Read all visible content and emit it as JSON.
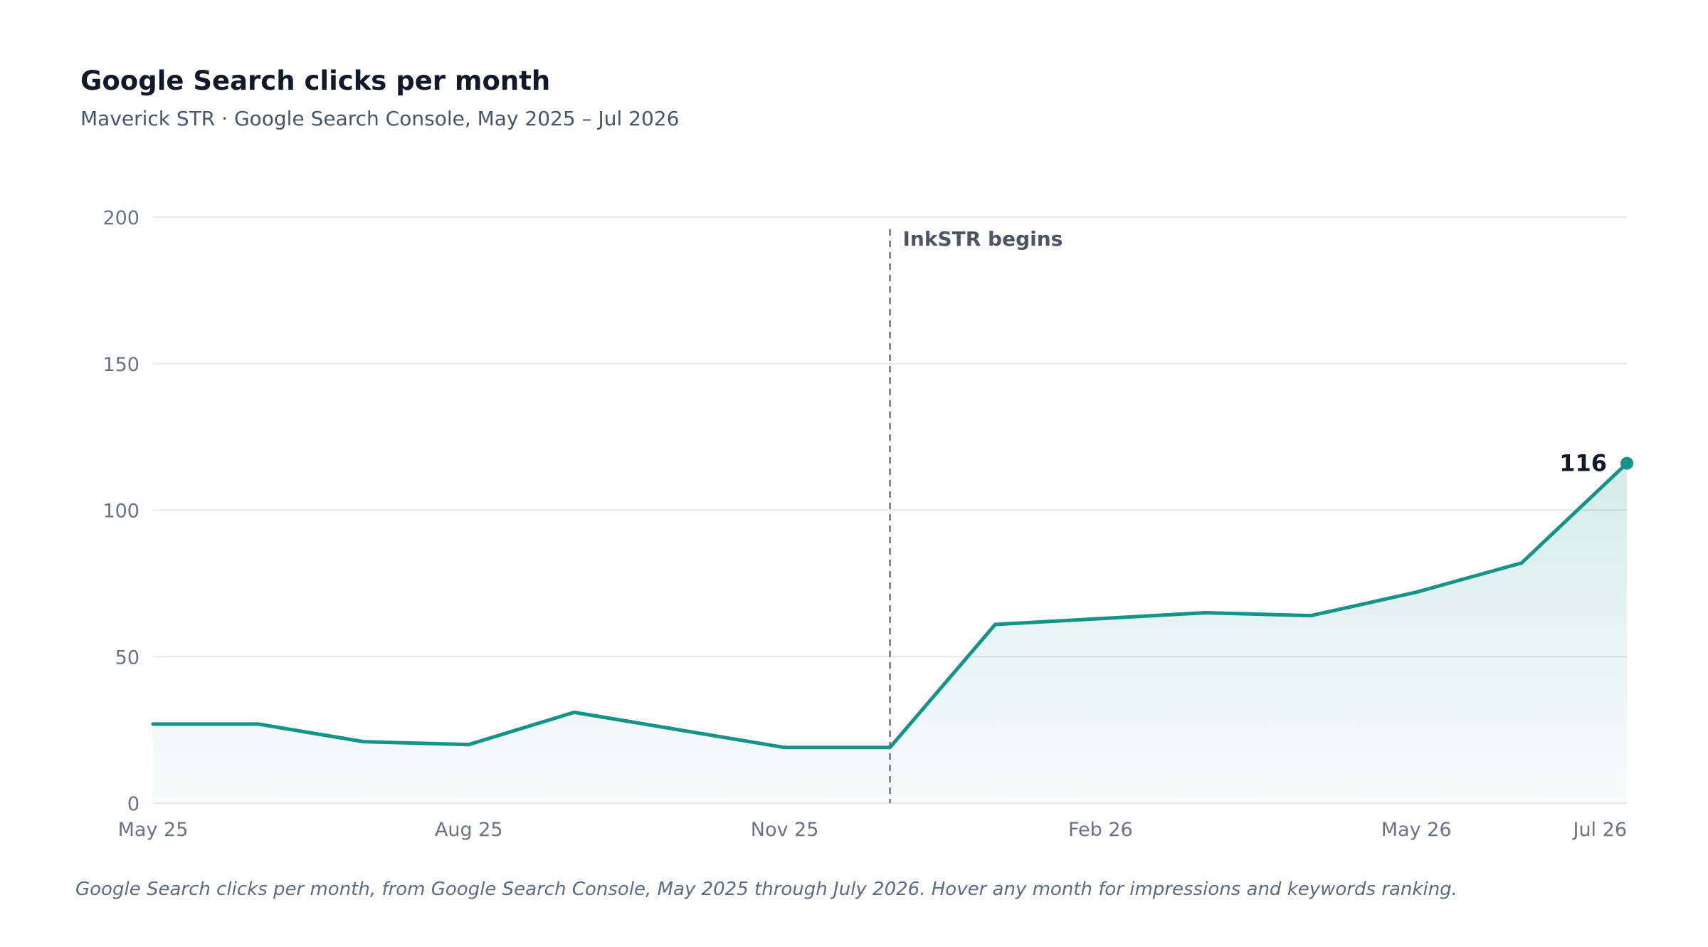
{
  "header": {
    "title": "Google Search clicks per month",
    "subtitle": "Maverick STR · Google Search Console, May 2025 – Jul 2026"
  },
  "caption": "Google Search clicks per month, from Google Search Console, May 2025 through July 2026. Hover any month for impressions and keywords ranking.",
  "colors": {
    "line": "#139486",
    "area": "#139486",
    "grid": "#e5e7eb",
    "annotation_line": "#8a8a8a",
    "annotation_text": "#4b5563",
    "end_label": "#111827",
    "tick_text": "#6b7280"
  },
  "chart_data": {
    "type": "area",
    "x": [
      "2025-05",
      "2025-06",
      "2025-07",
      "2025-08",
      "2025-09",
      "2025-10",
      "2025-11",
      "2025-12",
      "2026-01",
      "2026-02",
      "2026-03",
      "2026-04",
      "2026-05",
      "2026-06",
      "2026-07"
    ],
    "values": [
      27,
      27,
      21,
      20,
      31,
      25,
      19,
      19,
      61,
      63,
      65,
      64,
      72,
      82,
      116
    ],
    "ylim": [
      0,
      200
    ],
    "yticks": [
      0,
      50,
      100,
      150,
      200
    ],
    "xticks": [
      {
        "x": "2025-05",
        "label": "May 25"
      },
      {
        "x": "2025-08",
        "label": "Aug 25"
      },
      {
        "x": "2025-11",
        "label": "Nov 25"
      },
      {
        "x": "2026-02",
        "label": "Feb 26"
      },
      {
        "x": "2026-05",
        "label": "May 26"
      },
      {
        "x": "2026-07",
        "label": "Jul 26"
      }
    ],
    "annotation": {
      "x": "2025-12",
      "label": "InkSTR begins"
    },
    "end_label": "116",
    "grid": true,
    "legend": "none"
  }
}
